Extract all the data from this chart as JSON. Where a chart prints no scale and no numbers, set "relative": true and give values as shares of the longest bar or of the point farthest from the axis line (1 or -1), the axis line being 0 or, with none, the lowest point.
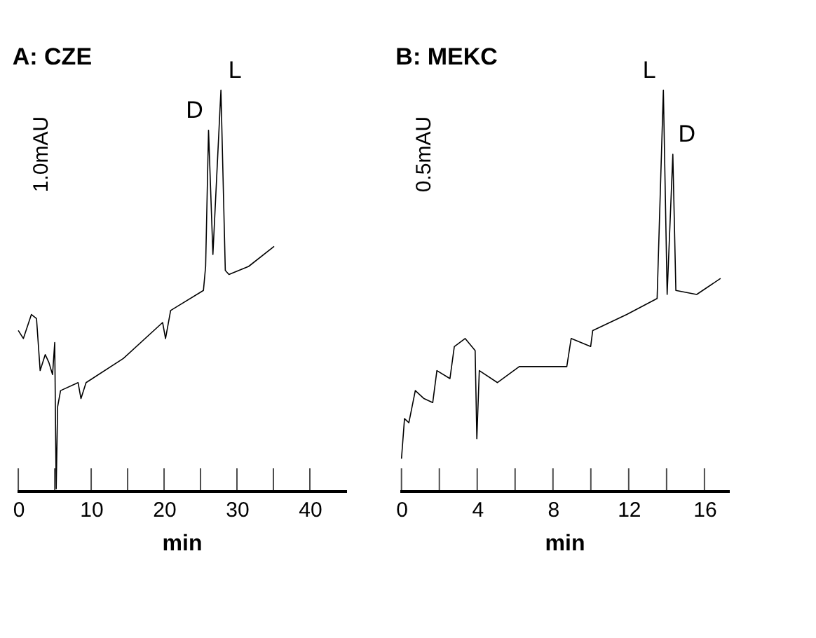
{
  "chart_data": [
    {
      "type": "line",
      "title": "A: CZE",
      "xlabel": "min",
      "relative": true,
      "xlim": [
        -0.2,
        45
      ],
      "xticks": [
        0,
        {
          "value": 5,
          "label": null
        },
        10,
        {
          "value": 15,
          "label": null
        },
        20,
        {
          "value": 25,
          "label": null
        },
        30,
        {
          "value": 35,
          "label": null
        },
        40
      ],
      "grid": false,
      "marker": "none",
      "line_style": "solid",
      "series": [
        {
          "color": "#000000",
          "x": [
            0,
            0.7,
            1.8,
            2.5,
            3.0,
            3.7,
            4.2,
            4.7,
            5.0,
            5.2,
            5.4,
            5.8,
            8.2,
            8.6,
            9.3,
            14.4,
            19.8,
            20.2,
            20.9,
            25.4,
            25.7,
            26.1,
            26.7,
            27.8,
            28.4,
            28.9,
            31.6,
            35.1
          ],
          "values": [
            0.4,
            0.38,
            0.44,
            0.43,
            0.3,
            0.34,
            0.32,
            0.29,
            0.37,
            0.005,
            0.21,
            0.25,
            0.27,
            0.23,
            0.27,
            0.33,
            0.42,
            0.38,
            0.45,
            0.5,
            0.56,
            0.9,
            0.59,
            1.0,
            0.55,
            0.54,
            0.56,
            0.61
          ]
        }
      ],
      "annotations": [
        {
          "text": "D",
          "x": 26.1,
          "y": 0.9
        },
        {
          "text": "L",
          "x": 27.8,
          "y": 1.0
        },
        "1.0mAU"
      ]
    },
    {
      "type": "line",
      "title": "B: MEKC",
      "xlabel": "min",
      "relative": true,
      "xlim": [
        -0.1,
        17.3
      ],
      "xticks": [
        0,
        {
          "value": 2,
          "label": null
        },
        4,
        {
          "value": 6,
          "label": null
        },
        8,
        {
          "value": 10,
          "label": null
        },
        12,
        {
          "value": 14,
          "label": null
        },
        16
      ],
      "grid": false,
      "marker": "none",
      "line_style": "solid",
      "series": [
        {
          "color": "#000000",
          "x": [
            0,
            0.16,
            0.39,
            0.73,
            1.19,
            1.65,
            1.87,
            2.56,
            2.79,
            3.36,
            3.89,
            3.98,
            4.11,
            5.07,
            6.22,
            8.73,
            8.96,
            9.99,
            10.1,
            11.9,
            13.5,
            13.83,
            14.03,
            14.33,
            14.49,
            15.59,
            16.85
          ],
          "values": [
            0.08,
            0.18,
            0.17,
            0.25,
            0.23,
            0.22,
            0.3,
            0.28,
            0.36,
            0.38,
            0.35,
            0.13,
            0.3,
            0.27,
            0.31,
            0.31,
            0.38,
            0.36,
            0.4,
            0.44,
            0.48,
            1.0,
            0.49,
            0.84,
            0.5,
            0.49,
            0.53
          ]
        }
      ],
      "annotations": [
        {
          "text": "L",
          "x": 13.83,
          "y": 1.0
        },
        {
          "text": "D",
          "x": 14.33,
          "y": 0.84
        },
        "0.5mAU"
      ]
    }
  ]
}
